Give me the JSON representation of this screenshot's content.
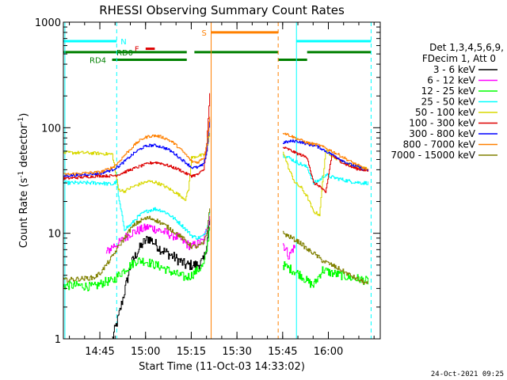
{
  "chart_data": {
    "type": "line",
    "title": "RHESSI Observing Summary Count Rates",
    "xlabel": "Start Time (11-Oct-03 14:33:02)",
    "ylabel_main": "Count Rate (s",
    "ylabel_sup1": "-1",
    "ylabel_mid": " detector",
    "ylabel_sup2": "-1",
    "ylabel_end": ")",
    "timestamp": "24-Oct-2021 09:25",
    "y_scale": "log",
    "ylim": [
      1,
      1000
    ],
    "xlim_minutes": [
      0,
      104
    ],
    "y_ticks": [
      {
        "value": 1,
        "label": "1"
      },
      {
        "value": 10,
        "label": "10"
      },
      {
        "value": 100,
        "label": "100"
      },
      {
        "value": 1000,
        "label": "1000"
      }
    ],
    "x_ticks": [
      {
        "value": 11.97,
        "label": "14:45"
      },
      {
        "value": 26.97,
        "label": "15:00"
      },
      {
        "value": 41.97,
        "label": "15:15"
      },
      {
        "value": 56.97,
        "label": "15:30"
      },
      {
        "value": 71.97,
        "label": "15:45"
      },
      {
        "value": 86.97,
        "label": "16:00"
      }
    ],
    "legend": {
      "placement": "right",
      "header1": "Det 1,3,4,5,6,9,",
      "header2": "FDecim 1, Att 0",
      "entries": [
        {
          "label": "3 - 6 keV",
          "color": "#000000"
        },
        {
          "label": "6 - 12 keV",
          "color": "#ff00ff"
        },
        {
          "label": "12 - 25 keV",
          "color": "#00ff00"
        },
        {
          "label": "25 - 50 keV",
          "color": "#00ffff"
        },
        {
          "label": "50 - 100 keV",
          "color": "#d8d800"
        },
        {
          "label": "100 - 300 keV",
          "color": "#dd0000"
        },
        {
          "label": "300 - 800 keV",
          "color": "#0000ff"
        },
        {
          "label": "800 - 7000 keV",
          "color": "#ff8000"
        },
        {
          "label": "7000 - 15000 keV",
          "color": "#808000"
        }
      ]
    },
    "flags": [
      {
        "label": "N",
        "color": "#00ffff",
        "y": 660,
        "segments": [
          [
            0,
            17.5
          ],
          [
            76.5,
            101
          ]
        ]
      },
      {
        "label": "S",
        "color": "#ff8000",
        "y": 800,
        "segments": [
          [
            48.5,
            70.5
          ]
        ]
      },
      {
        "label": "F",
        "color": "#dd0000",
        "y": 560,
        "segments": [
          [
            27,
            30
          ]
        ]
      },
      {
        "label": "RD0",
        "color": "#008000",
        "y": 520,
        "segments": [
          [
            0,
            40.5
          ],
          [
            43,
            70.5
          ],
          [
            80,
            101
          ]
        ]
      },
      {
        "label": "RD4",
        "color": "#008000",
        "y": 440,
        "segments": [
          [
            16,
            40.5
          ],
          [
            70.5,
            80
          ]
        ]
      }
    ],
    "markers": [
      {
        "x": 0.5,
        "color": "#00ffff",
        "style": "solid"
      },
      {
        "x": 17.5,
        "color": "#00ffff",
        "style": "dashed"
      },
      {
        "x": 48.5,
        "color": "#ff8000",
        "style": "solid"
      },
      {
        "x": 70.5,
        "color": "#ff8000",
        "style": "dashed"
      },
      {
        "x": 76.5,
        "color": "#00ffff",
        "style": "solid"
      },
      {
        "x": 101,
        "color": "#00ffff",
        "style": "dashed"
      }
    ],
    "data_segments": [
      [
        0,
        48.5
      ],
      [
        72,
        101
      ]
    ],
    "series": [
      {
        "name": "3 - 6 keV",
        "color": "#000000",
        "noise": 0.12,
        "x": [
          16,
          18,
          20,
          22,
          24,
          26,
          28,
          30,
          32,
          34,
          36,
          38,
          40,
          42,
          44,
          46,
          47,
          48
        ],
        "y": [
          1.0,
          1.6,
          2.8,
          5,
          6.5,
          8,
          9,
          8,
          7,
          6.5,
          6,
          5.5,
          5,
          5,
          5,
          5.5,
          8,
          13
        ]
      },
      {
        "name": "6 - 12 keV",
        "color": "#ff00ff",
        "noise": 0.1,
        "x": [
          14,
          16,
          18,
          20,
          22,
          24,
          26,
          28,
          30,
          32,
          34,
          36,
          38,
          40,
          42,
          44,
          46,
          47,
          48,
          72,
          73,
          74,
          75,
          76
        ],
        "y": [
          6.5,
          7.5,
          8,
          9,
          10,
          10.5,
          11,
          11.5,
          11,
          10.5,
          10,
          9.5,
          9,
          8,
          7.5,
          8,
          8.5,
          11,
          15,
          8,
          7,
          6,
          7,
          7.5
        ]
      },
      {
        "name": "12 - 25 keV",
        "color": "#00ff00",
        "noise": 0.1,
        "x": [
          0,
          5,
          10,
          12,
          14,
          16,
          18,
          20,
          22,
          24,
          26,
          28,
          30,
          32,
          34,
          36,
          38,
          40,
          42,
          44,
          46,
          47,
          48,
          72,
          75,
          78,
          80,
          82,
          85,
          88,
          91,
          94,
          97,
          100
        ],
        "y": [
          3.2,
          3.2,
          3.1,
          3.3,
          3.5,
          3.5,
          4,
          4.5,
          5,
          5.5,
          5.5,
          5.3,
          5,
          4.8,
          4.5,
          4.2,
          4,
          3.8,
          4,
          4.5,
          5,
          7,
          12,
          5,
          4.5,
          4,
          3.5,
          3.2,
          4.5,
          4.2,
          4,
          3.8,
          3.7,
          3.5
        ]
      },
      {
        "name": "25 - 50 keV",
        "color": "#00ffff",
        "noise": 0.04,
        "x": [
          0,
          6,
          12,
          16,
          17.5,
          18,
          20,
          22,
          24,
          26,
          28,
          30,
          32,
          34,
          36,
          38,
          40,
          42,
          44,
          46,
          47,
          48,
          72,
          74,
          76,
          78,
          80,
          82,
          84,
          86,
          88,
          90,
          92,
          94,
          96,
          98,
          100
        ],
        "y": [
          30,
          30,
          30,
          29,
          31,
          22,
          11,
          12,
          14,
          15.5,
          16.5,
          17,
          16.5,
          15.5,
          14,
          12.5,
          11,
          9.5,
          9,
          9.5,
          11,
          17,
          55,
          52,
          48,
          45,
          42,
          30,
          32,
          36,
          34,
          33,
          32,
          31,
          30.5,
          30,
          30
        ]
      },
      {
        "name": "50 - 100 keV",
        "color": "#d8d800",
        "noise": 0.035,
        "x": [
          0,
          6,
          12,
          16,
          18,
          20,
          22,
          24,
          26,
          28,
          30,
          32,
          34,
          36,
          38,
          40,
          41,
          42,
          44,
          46,
          47,
          48,
          72,
          74,
          76,
          78,
          80,
          82,
          84,
          86,
          88,
          90,
          92,
          94,
          96,
          98,
          100
        ],
        "y": [
          58,
          58,
          57,
          56,
          26,
          25,
          27,
          28.5,
          30,
          31,
          30.5,
          29,
          27,
          25,
          23,
          21,
          26,
          52,
          54,
          55,
          60,
          90,
          60,
          40,
          30,
          27,
          22,
          16,
          15,
          60,
          55,
          50,
          47,
          45,
          43,
          42,
          40
        ]
      },
      {
        "name": "100 - 300 keV",
        "color": "#dd0000",
        "noise": 0.03,
        "x": [
          0,
          6,
          12,
          16,
          18,
          20,
          22,
          24,
          26,
          28,
          30,
          32,
          34,
          36,
          38,
          40,
          42,
          44,
          46,
          47,
          48,
          72,
          74,
          76,
          78,
          80,
          82,
          84,
          86,
          88,
          90,
          92,
          94,
          96,
          98,
          100
        ],
        "y": [
          33,
          34,
          35,
          35,
          36,
          38,
          40,
          42,
          44,
          46,
          47,
          46,
          44,
          42,
          40,
          37,
          35,
          36,
          40,
          70,
          210,
          65,
          62,
          58,
          55,
          52,
          30,
          28,
          24,
          55,
          50,
          46,
          43,
          41,
          40,
          39
        ]
      },
      {
        "name": "300 - 800 keV",
        "color": "#0000ff",
        "noise": 0.03,
        "x": [
          0,
          6,
          12,
          16,
          18,
          20,
          22,
          24,
          26,
          28,
          30,
          32,
          34,
          36,
          38,
          40,
          42,
          44,
          46,
          47,
          48,
          72,
          74,
          76,
          78,
          80,
          82,
          84,
          86,
          88,
          90,
          92,
          94,
          96,
          98,
          100
        ],
        "y": [
          35,
          36,
          37,
          40,
          43,
          48,
          54,
          60,
          65,
          68,
          68,
          66,
          63,
          58,
          52,
          47,
          42,
          42,
          45,
          60,
          120,
          72,
          74,
          75,
          73,
          70,
          68,
          65,
          60,
          56,
          52,
          48,
          45,
          43,
          41,
          40
        ]
      },
      {
        "name": "800 - 7000 keV",
        "color": "#ff8000",
        "noise": 0.03,
        "x": [
          0,
          6,
          12,
          16,
          18,
          20,
          22,
          24,
          26,
          28,
          30,
          32,
          34,
          36,
          38,
          40,
          42,
          44,
          46,
          47,
          48,
          72,
          74,
          76,
          78,
          80,
          82,
          84,
          86,
          88,
          90,
          92,
          94,
          96,
          98,
          100
        ],
        "y": [
          36,
          37,
          38,
          42,
          47,
          55,
          63,
          72,
          79,
          83,
          84,
          82,
          78,
          72,
          64,
          56,
          48,
          47,
          52,
          70,
          130,
          90,
          85,
          80,
          76,
          72,
          70,
          68,
          64,
          60,
          56,
          52,
          48,
          45,
          42,
          40
        ]
      },
      {
        "name": "7000 - 15000 keV",
        "color": "#808000",
        "noise": 0.05,
        "x": [
          0,
          5,
          10,
          12,
          14,
          16,
          18,
          20,
          22,
          24,
          26,
          28,
          30,
          32,
          34,
          36,
          38,
          40,
          42,
          44,
          46,
          47,
          48,
          72,
          75,
          78,
          80,
          82,
          85,
          88,
          91,
          94,
          97,
          100
        ],
        "y": [
          3.6,
          3.7,
          3.8,
          4.2,
          5,
          6,
          7.5,
          9,
          11,
          12.5,
          13.5,
          14,
          13.5,
          12.5,
          11.5,
          10.5,
          9.5,
          8.5,
          7.5,
          7.5,
          8,
          10,
          18,
          10,
          9,
          8,
          7,
          6.5,
          5.5,
          5,
          4.5,
          4,
          3.6,
          3.3
        ]
      }
    ]
  }
}
